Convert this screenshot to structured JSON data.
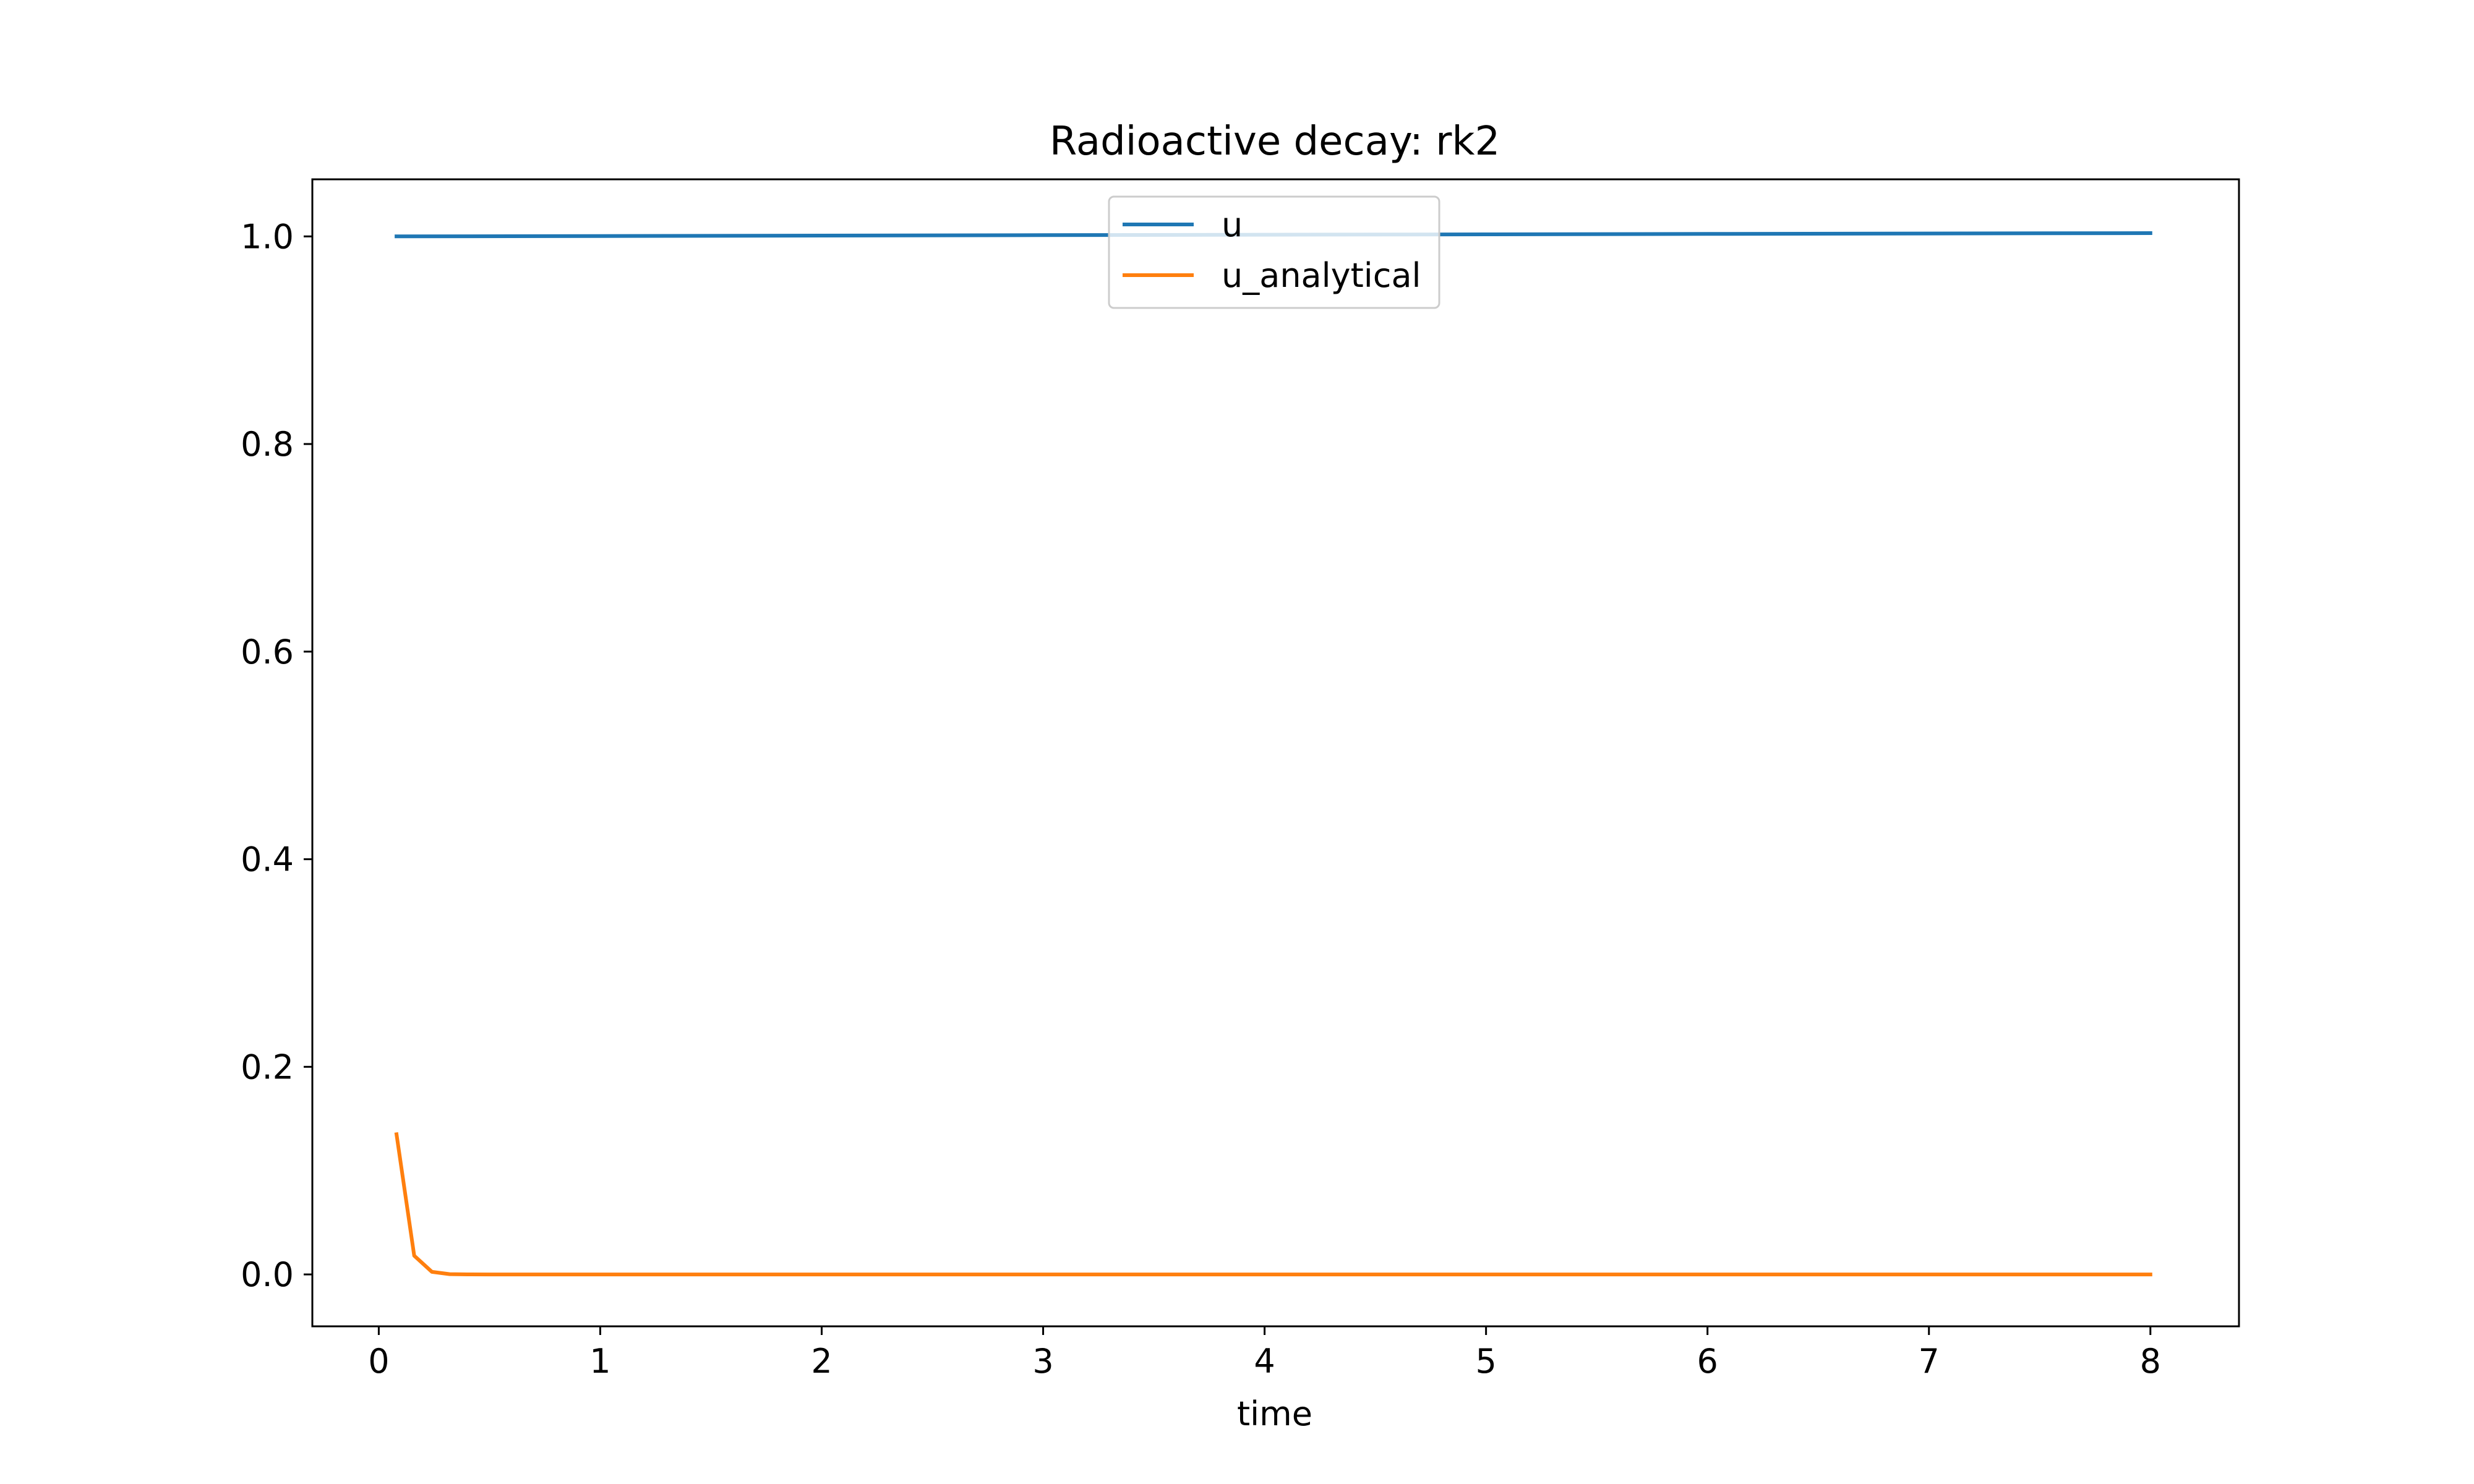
{
  "chart_data": {
    "type": "line",
    "title": "Radioactive decay: rk2",
    "xlabel": "time",
    "ylabel": "",
    "xlim": [
      -0.3,
      8.4
    ],
    "ylim": [
      -0.05,
      1.055
    ],
    "xticks": [
      0,
      1,
      2,
      3,
      4,
      5,
      6,
      7,
      8
    ],
    "xtick_labels": [
      "0",
      "1",
      "2",
      "3",
      "4",
      "5",
      "6",
      "7",
      "8"
    ],
    "yticks": [
      0.0,
      0.2,
      0.4,
      0.6,
      0.8,
      1.0
    ],
    "ytick_labels": [
      "0.0",
      "0.2",
      "0.4",
      "0.6",
      "0.8",
      "1.0"
    ],
    "grid": false,
    "legend_position": "upper center",
    "series": [
      {
        "name": "u",
        "color": "#1f77b4",
        "x": [
          0.08,
          1,
          2,
          3,
          4,
          5,
          6,
          7,
          8
        ],
        "y": [
          1.0,
          1.0004,
          1.0008,
          1.0012,
          1.0016,
          1.002,
          1.0024,
          1.0028,
          1.0032
        ]
      },
      {
        "name": "u_analytical",
        "color": "#ff7f0e",
        "x": [
          0.08,
          0.16,
          0.24,
          0.32,
          0.4,
          0.5,
          1,
          2,
          3,
          4,
          5,
          6,
          7,
          8
        ],
        "y": [
          0.135,
          0.018,
          0.0025,
          0.0003,
          5e-05,
          0.0,
          0.0,
          0.0,
          0.0,
          0.0,
          0.0,
          0.0,
          0.0,
          0.0
        ]
      }
    ]
  }
}
